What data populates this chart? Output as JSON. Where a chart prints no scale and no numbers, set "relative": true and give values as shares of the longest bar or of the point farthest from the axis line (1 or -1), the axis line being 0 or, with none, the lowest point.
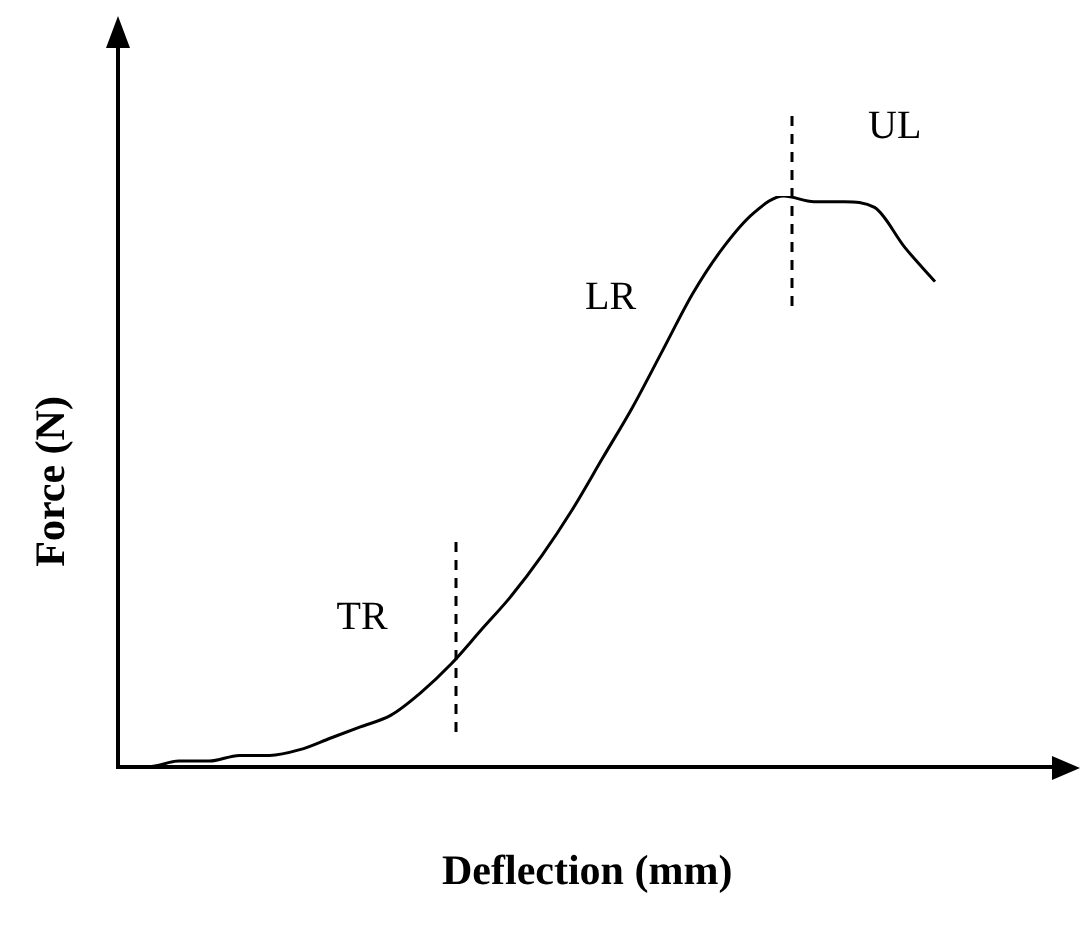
{
  "chart_data": {
    "type": "line",
    "relative": true,
    "xlabel": "Deflection (mm)",
    "ylabel": "Force (N)",
    "color": "#000000",
    "marker": "none",
    "line_style": "solid",
    "grid": false,
    "legend": false,
    "categories": [
      null,
      null,
      null,
      null,
      null,
      null,
      null,
      null,
      null,
      null,
      null,
      null,
      null,
      null,
      null,
      null,
      null,
      null,
      null,
      null,
      null,
      null,
      null,
      null,
      null,
      null,
      null,
      null,
      null,
      null,
      null,
      null
    ],
    "values": [
      0,
      0,
      0.01,
      0.01,
      0.02,
      0.02,
      0.03,
      0.05,
      0.07,
      0.09,
      0.13,
      0.18,
      0.24,
      0.3,
      0.37,
      0.45,
      0.54,
      0.63,
      0.73,
      0.83,
      0.91,
      0.97,
      1,
      0.99,
      0.99,
      0.98,
      0.91,
      0.85,
      null,
      null,
      null,
      null
    ],
    "annotations": [
      "TR",
      "LR",
      "UL"
    ]
  }
}
